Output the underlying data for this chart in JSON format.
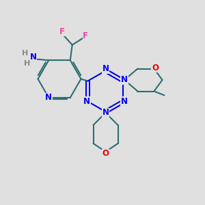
{
  "background_color": "#e0e0e0",
  "bond_color": "#2d6e6e",
  "bond_width": 1.5,
  "N_color": "#0000ee",
  "O_color": "#ee0000",
  "F_color": "#ee44aa",
  "H_color": "#888888",
  "figsize": [
    3.0,
    3.0
  ],
  "dpi": 100,
  "xlim": [
    0,
    10
  ],
  "ylim": [
    0,
    10
  ]
}
